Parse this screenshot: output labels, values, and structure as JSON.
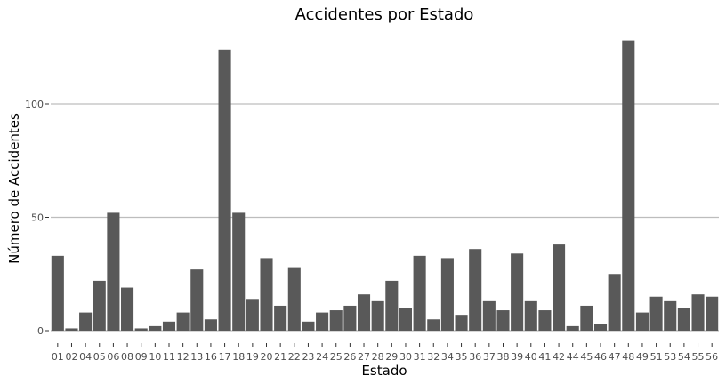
{
  "chart_data": {
    "type": "bar",
    "title": "Accidentes por Estado",
    "xlabel": "Estado",
    "ylabel": "Número de Accidentes",
    "ylim": [
      0,
      130
    ],
    "yticks": [
      0,
      50,
      100
    ],
    "grid": true,
    "categories": [
      "01",
      "02",
      "04",
      "05",
      "06",
      "08",
      "09",
      "10",
      "11",
      "12",
      "13",
      "16",
      "17",
      "18",
      "19",
      "20",
      "21",
      "22",
      "23",
      "24",
      "25",
      "26",
      "27",
      "28",
      "29",
      "30",
      "31",
      "32",
      "34",
      "35",
      "36",
      "37",
      "38",
      "39",
      "40",
      "41",
      "42",
      "44",
      "45",
      "46",
      "47",
      "48",
      "49",
      "51",
      "53",
      "54",
      "55",
      "56"
    ],
    "values": [
      33,
      1,
      8,
      22,
      52,
      19,
      1,
      2,
      4,
      8,
      27,
      5,
      124,
      52,
      14,
      32,
      11,
      28,
      4,
      8,
      9,
      11,
      16,
      13,
      22,
      10,
      33,
      5,
      32,
      7,
      36,
      13,
      9,
      34,
      13,
      9,
      38,
      2,
      11,
      3,
      25,
      128,
      8,
      15,
      13,
      10,
      16,
      15
    ],
    "colors": {
      "bar": "#595959",
      "grid": "#bdbdbd",
      "axis_text": "#4d4d4d"
    }
  }
}
